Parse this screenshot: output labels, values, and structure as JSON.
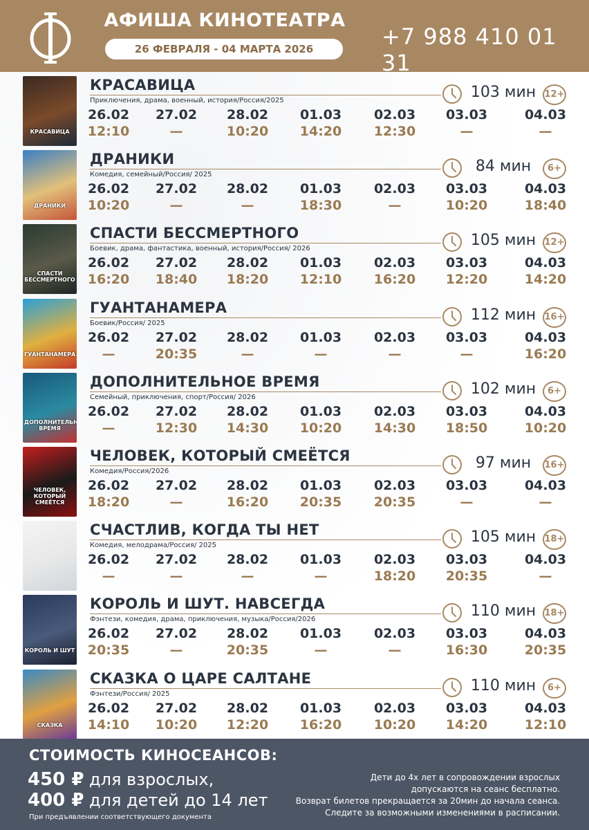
{
  "header": {
    "title": "АФИША КИНОТЕАТРА",
    "dates": "26 ФЕВРАЛЯ - 04 МАРТА 2026",
    "phone": "+7 988 410 01 31",
    "brand_color": "#a88863"
  },
  "days": [
    "26.02",
    "27.02",
    "28.02",
    "01.03",
    "02.03",
    "03.03",
    "04.03"
  ],
  "movies": [
    {
      "title": "КРАСАВИЦА",
      "genre": "Приключения, драма, военный, история/Россия/2025",
      "duration": "103 мин",
      "age": "12+",
      "poster_text": "КРАСАВИЦА",
      "poster_colors": [
        "#3a2a22",
        "#7a4a2a",
        "#1d2a3a"
      ],
      "times": [
        "12:10",
        "—",
        "10:20",
        "14:20",
        "12:30",
        "—",
        "—"
      ]
    },
    {
      "title": "ДРАНИКИ",
      "genre": "Комедия, семейный/Россия/ 2025",
      "duration": "84 мин",
      "age": "6+",
      "poster_text": "ДРАНИКИ",
      "poster_colors": [
        "#3b7fc4",
        "#e2c07a",
        "#c4553b"
      ],
      "times": [
        "10:20",
        "—",
        "—",
        "18:30",
        "—",
        "10:20",
        "18:40"
      ]
    },
    {
      "title": "СПАСТИ БЕССМЕРТНОГО",
      "genre": "Боевик, драма, фантастика, военный, история/Россия/ 2026",
      "duration": "105 мин",
      "age": "12+",
      "poster_text": "СПАСТИ БЕССМЕРТНОГО",
      "poster_colors": [
        "#2a3a30",
        "#5a5a4a",
        "#1f2622"
      ],
      "times": [
        "16:20",
        "18:40",
        "18:20",
        "12:10",
        "16:20",
        "12:20",
        "14:20"
      ]
    },
    {
      "title": "ГУАНТАНАМЕРА",
      "genre": "Боевик/Россия/ 2025",
      "duration": "112 мин",
      "age": "16+",
      "poster_text": "ГУАНТАНАМЕРА",
      "poster_colors": [
        "#2ba0d8",
        "#e0b040",
        "#c43a2a"
      ],
      "times": [
        "—",
        "20:35",
        "—",
        "—",
        "—",
        "—",
        "16:20"
      ]
    },
    {
      "title": "ДОПОЛНИТЕЛЬНОЕ ВРЕМЯ",
      "genre": "Семейный, приключения, спорт/Россия/ 2026",
      "duration": "102 мин",
      "age": "6+",
      "poster_text": "ДОПОЛНИТЕЛЬНОЕ ВРЕМЯ",
      "poster_colors": [
        "#1a5a7a",
        "#2a8aa0",
        "#c43030"
      ],
      "times": [
        "—",
        "12:30",
        "14:30",
        "10:20",
        "14:30",
        "18:50",
        "10:20"
      ]
    },
    {
      "title": "ЧЕЛОВЕК, КОТОРЫЙ СМЕЁТСЯ",
      "genre": "Комедия/Россия/2026",
      "duration": "97 мин",
      "age": "16+",
      "poster_text": "ЧЕЛОВЕК, КОТОРЫЙ СМЕЁТСЯ",
      "poster_colors": [
        "#c41e1e",
        "#1a1a1a",
        "#8a1010"
      ],
      "times": [
        "18:20",
        "—",
        "16:20",
        "20:35",
        "20:35",
        "—",
        "—"
      ]
    },
    {
      "title": "СЧАСТЛИВ, КОГДА ТЫ НЕТ",
      "genre": "Комедия, мелодрама/Россия/ 2025",
      "duration": "105 мин",
      "age": "18+",
      "poster_text": "",
      "poster_colors": [
        "#f4f4f4",
        "#e8e8e8",
        "#cfd6dc"
      ],
      "times": [
        "—",
        "—",
        "—",
        "—",
        "18:20",
        "20:35",
        "—"
      ]
    },
    {
      "title": "КОРОЛЬ И ШУТ. НАВСЕГДА",
      "genre": "Фэнтези, комедия, драма, приключения, музыка/Россия/2026",
      "duration": "110 мин",
      "age": "18+",
      "poster_text": "КОРОЛЬ И ШУТ",
      "poster_colors": [
        "#2a3a5a",
        "#4a5a7a",
        "#1a2030"
      ],
      "times": [
        "20:35",
        "—",
        "20:35",
        "—",
        "—",
        "16:30",
        "20:35"
      ]
    },
    {
      "title": "СКАЗКА О ЦАРЕ САЛТАНЕ",
      "genre": "Фэнтези/Россия/ 2025",
      "duration": "110 мин",
      "age": "6+",
      "poster_text": "СКАЗКА",
      "poster_colors": [
        "#3a8ac4",
        "#e0a040",
        "#6a3a9a"
      ],
      "times": [
        "14:10",
        "10:20",
        "12:20",
        "16:20",
        "10:20",
        "14:20",
        "12:10"
      ]
    }
  ],
  "footer": {
    "title": "СТОИМОСТЬ КИНОСЕАНСОВ:",
    "price_adult_amount": "450 ₽",
    "price_adult_label": " для взрослых,",
    "price_child_amount": "400 ₽",
    "price_child_label": " для детей до 14 лет",
    "doc_note": "При предъявлении соответствующего документа",
    "notes": [
      "Дети до 4х лет в сопровождении взрослых",
      "допускаются на сеанс бесплатно.",
      "Возврат билетов прекращается за 20мин до начала сеанса.",
      "Следите за возможными изменениями в расписании."
    ],
    "bg_color": "#4d5665"
  }
}
